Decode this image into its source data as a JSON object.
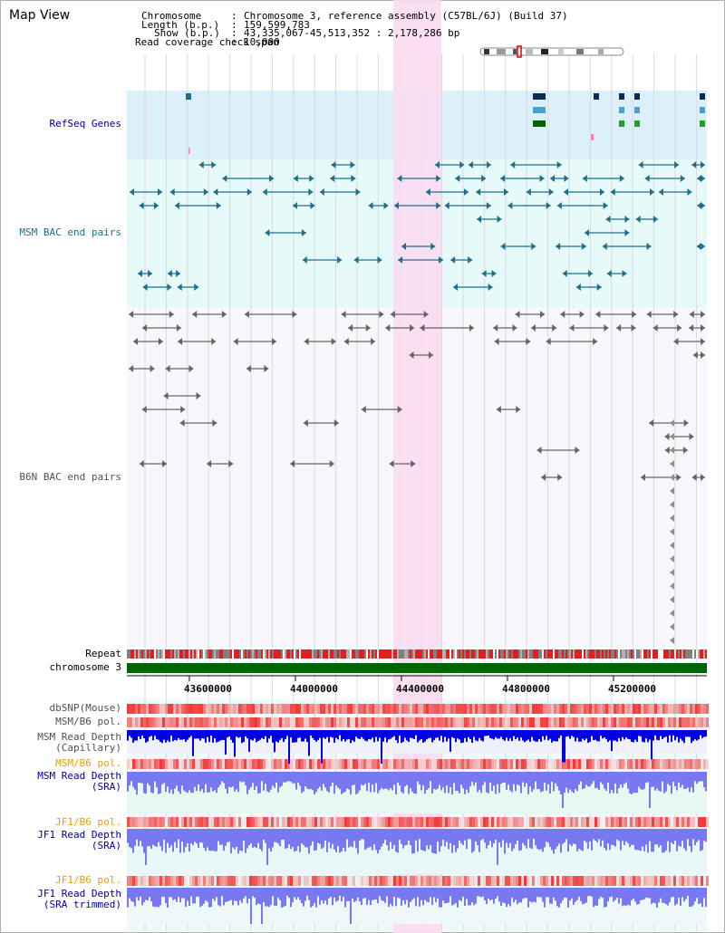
{
  "header": {
    "title": "Map View",
    "chromosome_label": "Chromosome",
    "chromosome_value": "Chromosome 3, reference assembly (C57BL/6J) (Build 37)",
    "length_label": "Length (b.p.)",
    "length_value": "159,599,783",
    "show_label": "Show (b.p.)",
    "show_value": "43,335,067-45,513,352 : 2,178,286 bp",
    "coverage_label": "Read coverage check span",
    "coverage_value": "10,000"
  },
  "tracks": {
    "refseq": "RefSeq Genes",
    "msm_bac": "MSM BAC end pairs",
    "b6n_bac": "B6N BAC end pairs",
    "repeat": "Repeat",
    "chromosome": "chromosome 3",
    "dbsnp": "dbSNP(Mouse)",
    "msm_b6_pol_1": "MSM/B6 pol.",
    "msm_depth_cap": "MSM Read Depth\n(Capillary)",
    "msm_b6_pol_2": "MSM/B6 pol.",
    "msm_depth_sra": "MSM Read Depth\n(SRA)",
    "jf1_b6_pol_1": "JF1/B6 pol.",
    "jf1_depth_sra": "JF1 Read Depth\n(SRA)",
    "jf1_b6_pol_2": "JF1/B6 pol.",
    "jf1_depth_trim": "JF1 Read Depth\n(SRA trimmed)"
  },
  "axis": {
    "ticks": [
      "43600000",
      "44000000",
      "44400000",
      "44800000",
      "45200000"
    ]
  },
  "colors": {
    "refseq_bg": "#dcf0fa",
    "msm_bg": "#e6fafa",
    "highlight": "#fadcf0",
    "msm_color": "#1e6e8c",
    "b6n_color": "#646464",
    "chromosome": "#006400",
    "depth_dark": "#0000e6",
    "depth_light": "#7878f0",
    "pol_red": "#f04646",
    "label_blue": "#000096",
    "label_teal": "#1e6e8c",
    "label_gray": "#505050",
    "label_orange": "#e6a000"
  }
}
